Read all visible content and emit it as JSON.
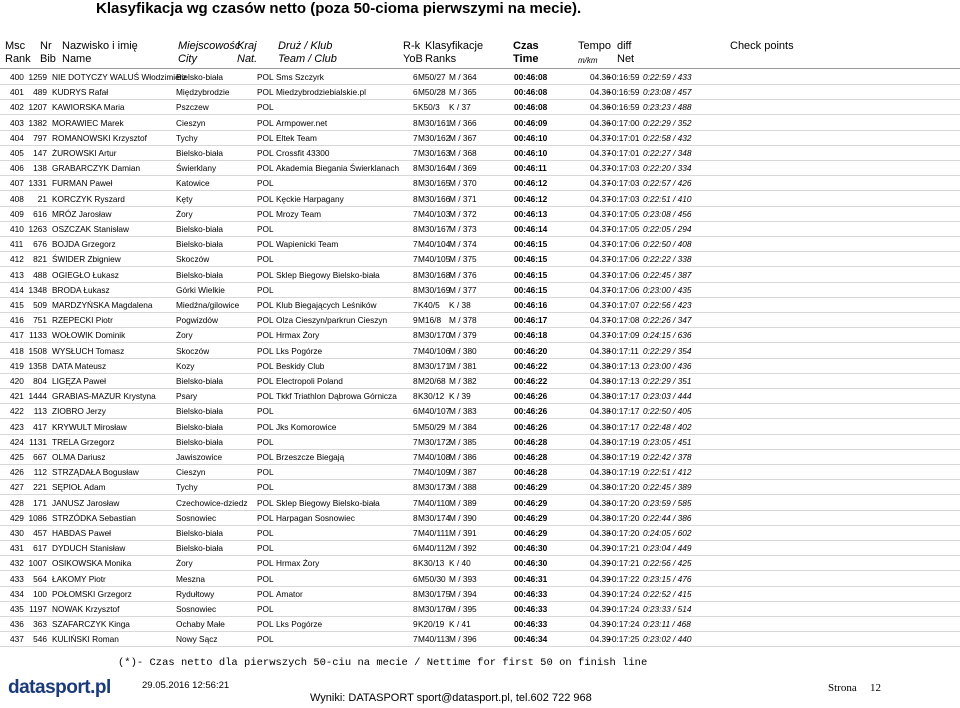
{
  "header": {
    "title": "Klasyfikacja wg czasów netto (poza 50-cioma pierwszymi na mecie).",
    "columns": [
      {
        "top": "Msc",
        "bottom": "Rank"
      },
      {
        "top": "Nr",
        "bottom": "Bib"
      },
      {
        "top": "Nazwisko i imię",
        "bottom": "Name"
      },
      {
        "top": "Miejscowość",
        "bottom": "City"
      },
      {
        "top": "Kraj",
        "bottom": "Nat."
      },
      {
        "top": "Druż / Klub",
        "bottom": "Team / Club"
      },
      {
        "top": "R-k",
        "bottom": "YoB"
      },
      {
        "top": "Klasyfikacje",
        "bottom": "Ranks"
      },
      {
        "top": "Czas",
        "bottom": "Time"
      },
      {
        "top": "Tempo",
        "bottom": "m/km"
      },
      {
        "top": "diff",
        "bottom": "Net"
      },
      {
        "top": "Check points"
      }
    ]
  },
  "table": {
    "rows": [
      [
        "400",
        "1259",
        "NIE DOTYCZY WALUŚ Włodzimierz",
        "Bielsko-biała",
        "POL",
        "Sms Szczyrk",
        "6",
        "M50/27",
        "M / 364",
        "00:46:08",
        "04.36",
        "+0:16:59",
        "0:22:59 / 433"
      ],
      [
        "401",
        "489",
        "KUDRYS Rafał",
        "Międzybrodzie",
        "POL",
        "Miedzybrodziebialskie.pl",
        "6",
        "M50/28",
        "M / 365",
        "00:46:08",
        "04.36",
        "+0:16:59",
        "0:23:08 / 457"
      ],
      [
        "402",
        "1207",
        "KAWIORSKA Maria",
        "Pszczew",
        "POL",
        "",
        "5",
        "K50/3",
        "K / 37",
        "00:46:08",
        "04.36",
        "+0:16:59",
        "0:23:23 / 488"
      ],
      [
        "403",
        "1382",
        "MORAWIEC Marek",
        "Cieszyn",
        "POL",
        "Armpower.net",
        "8",
        "M30/161",
        "M / 366",
        "00:46:09",
        "04.36",
        "+0:17:00",
        "0:22:29 / 352"
      ],
      [
        "404",
        "797",
        "ROMANOWSKI Krzysztof",
        "Tychy",
        "POL",
        "Eltek Team",
        "7",
        "M30/162",
        "M / 367",
        "00:46:10",
        "04.37",
        "+0:17:01",
        "0:22:58 / 432"
      ],
      [
        "405",
        "147",
        "ŻUROWSKI Artur",
        "Bielsko-biała",
        "POL",
        "Crossfit 43300",
        "7",
        "M30/163",
        "M / 368",
        "00:46:10",
        "04.37",
        "+0:17:01",
        "0:22:27 / 348"
      ],
      [
        "406",
        "138",
        "GRABARCZYK Damian",
        "Świerklany",
        "POL",
        "Akademia Biegania Świerklanach",
        "8",
        "M30/164",
        "M / 369",
        "00:46:11",
        "04.37",
        "+0:17:03",
        "0:22:20 / 334"
      ],
      [
        "407",
        "1331",
        "FURMAN Paweł",
        "Katowice",
        "POL",
        "",
        "8",
        "M30/165",
        "M / 370",
        "00:46:12",
        "04.37",
        "+0:17:03",
        "0:22:57 / 426"
      ],
      [
        "408",
        "21",
        "KORCZYK Ryszard",
        "Kęty",
        "POL",
        "Kęckie Harpagany",
        "8",
        "M30/166",
        "M / 371",
        "00:46:12",
        "04.37",
        "+0:17:03",
        "0:22:51 / 410"
      ],
      [
        "409",
        "616",
        "MRÓZ Jarosław",
        "Żory",
        "POL",
        "Mrozy Team",
        "7",
        "M40/103",
        "M / 372",
        "00:46:13",
        "04.37",
        "+0:17:05",
        "0:23:08 / 456"
      ],
      [
        "410",
        "1263",
        "OSZCZAK Stanisław",
        "Bielsko-biała",
        "POL",
        "",
        "8",
        "M30/167",
        "M / 373",
        "00:46:14",
        "04.37",
        "+0:17:05",
        "0:22:05 / 294"
      ],
      [
        "411",
        "676",
        "BOJDA Grzegorz",
        "Bielsko-biała",
        "POL",
        "Wapienicki Team",
        "7",
        "M40/104",
        "M / 374",
        "00:46:15",
        "04.37",
        "+0:17:06",
        "0:22:50 / 408"
      ],
      [
        "412",
        "821",
        "ŚWIDER Zbigniew",
        "Skoczów",
        "POL",
        "",
        "7",
        "M40/105",
        "M / 375",
        "00:46:15",
        "04.37",
        "+0:17:06",
        "0:22:22 / 338"
      ],
      [
        "413",
        "488",
        "OGIEGŁO Łukasz",
        "Bielsko-biała",
        "POL",
        "Sklep Biegowy Bielsko-biała",
        "8",
        "M30/168",
        "M / 376",
        "00:46:15",
        "04.37",
        "+0:17:06",
        "0:22:45 / 387"
      ],
      [
        "414",
        "1348",
        "BRODA Łukasz",
        "Górki Wielkie",
        "POL",
        "",
        "8",
        "M30/169",
        "M / 377",
        "00:46:15",
        "04.37",
        "+0:17:06",
        "0:23:00 / 435"
      ],
      [
        "415",
        "509",
        "MARDZYŃSKA Magdalena",
        "Miedźna/gilowice",
        "POL",
        "Klub Biegających Leśników",
        "7",
        "K40/5",
        "K / 38",
        "00:46:16",
        "04.37",
        "+0:17:07",
        "0:22:56 / 423"
      ],
      [
        "416",
        "751",
        "RZEPECKI Piotr",
        "Pogwizdów",
        "POL",
        "Olza Cieszyn/parkrun Cieszyn",
        "9",
        "M16/8",
        "M / 378",
        "00:46:17",
        "04.37",
        "+0:17:08",
        "0:22:26 / 347"
      ],
      [
        "417",
        "1133",
        "WOŁOWIK Dominik",
        "Żory",
        "POL",
        "Hrmax Żory",
        "8",
        "M30/170",
        "M / 379",
        "00:46:18",
        "04.37",
        "+0:17:09",
        "0:24:15 / 636"
      ],
      [
        "418",
        "1508",
        "WYSŁUCH Tomasz",
        "Skoczów",
        "POL",
        "Lks Pogórze",
        "7",
        "M40/106",
        "M / 380",
        "00:46:20",
        "04.38",
        "+0:17:11",
        "0:22:29 / 354"
      ],
      [
        "419",
        "1358",
        "DATA Mateusz",
        "Kozy",
        "POL",
        "Beskidy Club",
        "8",
        "M30/171",
        "M / 381",
        "00:46:22",
        "04.38",
        "+0:17:13",
        "0:23:00 / 436"
      ],
      [
        "420",
        "804",
        "LIGĘZA Paweł",
        "Bielsko-biała",
        "POL",
        "Electropoli Poland",
        "8",
        "M20/68",
        "M / 382",
        "00:46:22",
        "04.38",
        "+0:17:13",
        "0:22:29 / 351"
      ],
      [
        "421",
        "1444",
        "GRABIAS-MAZUR Krystyna",
        "Psary",
        "POL",
        "Tkkf Triathlon Dąbrowa Górnicza",
        "8",
        "K30/12",
        "K / 39",
        "00:46:26",
        "04.38",
        "+0:17:17",
        "0:23:03 / 444"
      ],
      [
        "422",
        "113",
        "ZIOBRO Jerzy",
        "Bielsko-biała",
        "POL",
        "",
        "6",
        "M40/107",
        "M / 383",
        "00:46:26",
        "04.38",
        "+0:17:17",
        "0:22:50 / 405"
      ],
      [
        "423",
        "417",
        "KRYWULT Mirosław",
        "Bielsko-biała",
        "POL",
        "Jks Komorowice",
        "5",
        "M50/29",
        "M / 384",
        "00:46:26",
        "04.38",
        "+0:17:17",
        "0:22:48 / 402"
      ],
      [
        "424",
        "1131",
        "TRELA Grzegorz",
        "Bielsko-biała",
        "POL",
        "",
        "7",
        "M30/172",
        "M / 385",
        "00:46:28",
        "04.38",
        "+0:17:19",
        "0:23:05 / 451"
      ],
      [
        "425",
        "667",
        "OLMA Dariusz",
        "Jawiszowice",
        "POL",
        "Brzeszcze Biegają",
        "7",
        "M40/108",
        "M / 386",
        "00:46:28",
        "04.38",
        "+0:17:19",
        "0:22:42 / 378"
      ],
      [
        "426",
        "112",
        "STRZĄDAŁA Bogusław",
        "Cieszyn",
        "POL",
        "",
        "7",
        "M40/109",
        "M / 387",
        "00:46:28",
        "04.38",
        "+0:17:19",
        "0:22:51 / 412"
      ],
      [
        "427",
        "221",
        "SĘPIOŁ Adam",
        "Tychy",
        "POL",
        "",
        "8",
        "M30/173",
        "M / 388",
        "00:46:29",
        "04.38",
        "+0:17:20",
        "0:22:45 / 389"
      ],
      [
        "428",
        "171",
        "JANUSZ Jarosław",
        "Czechowice-dziedz",
        "POL",
        "Sklep Biegowy Bielsko-biała",
        "7",
        "M40/110",
        "M / 389",
        "00:46:29",
        "04.38",
        "+0:17:20",
        "0:23:59 / 585"
      ],
      [
        "429",
        "1086",
        "STRZÓDKA Sebastian",
        "Sosnowiec",
        "POL",
        "Harpagan Sosnowiec",
        "8",
        "M30/174",
        "M / 390",
        "00:46:29",
        "04.38",
        "+0:17:20",
        "0:22:44 / 386"
      ],
      [
        "430",
        "457",
        "HABDAS Paweł",
        "Bielsko-biała",
        "POL",
        "",
        "7",
        "M40/111",
        "M / 391",
        "00:46:29",
        "04.38",
        "+0:17:20",
        "0:24:05 / 602"
      ],
      [
        "431",
        "617",
        "DYDUCH Stanisław",
        "Bielsko-biała",
        "POL",
        "",
        "6",
        "M40/112",
        "M / 392",
        "00:46:30",
        "04.39",
        "+0:17:21",
        "0:23:04 / 449"
      ],
      [
        "432",
        "1007",
        "OSIKOWSKA Monika",
        "Żory",
        "POL",
        "Hrmax Żory",
        "8",
        "K30/13",
        "K / 40",
        "00:46:30",
        "04.39",
        "+0:17:21",
        "0:22:56 / 425"
      ],
      [
        "433",
        "564",
        "ŁAKOMY Piotr",
        "Meszna",
        "POL",
        "",
        "6",
        "M50/30",
        "M / 393",
        "00:46:31",
        "04.39",
        "+0:17:22",
        "0:23:15 / 476"
      ],
      [
        "434",
        "100",
        "POŁOMSKI Grzegorz",
        "Rydułtowy",
        "POL",
        "Amator",
        "8",
        "M30/175",
        "M / 394",
        "00:46:33",
        "04.39",
        "+0:17:24",
        "0:22:52 / 415"
      ],
      [
        "435",
        "1197",
        "NOWAK Krzysztof",
        "Sosnowiec",
        "POL",
        "",
        "8",
        "M30/176",
        "M / 395",
        "00:46:33",
        "04.39",
        "+0:17:24",
        "0:23:33 / 514"
      ],
      [
        "436",
        "363",
        "SZAFARCZYK Kinga",
        "Ochaby Małe",
        "POL",
        "Lks Pogórze",
        "9",
        "K20/19",
        "K / 41",
        "00:46:33",
        "04.39",
        "+0:17:24",
        "0:23:11 / 468"
      ],
      [
        "437",
        "546",
        "KULIŃSKI Roman",
        "Nowy Sącz",
        "POL",
        "",
        "7",
        "M40/113",
        "M / 396",
        "00:46:34",
        "04.39",
        "+0:17:25",
        "0:23:02 / 440"
      ]
    ]
  },
  "footer": {
    "note": "(*)- Czas netto dla pierwszych 50-ciu na mecie / Nettime for first 50 on finish line",
    "logo": "datasport.pl",
    "date": "29.05.2016 12:56:21",
    "contact": "Wyniki: DATASPORT sport@datasport.pl, tel.602 722 968",
    "page_label": "Strona",
    "page_number": "12"
  }
}
